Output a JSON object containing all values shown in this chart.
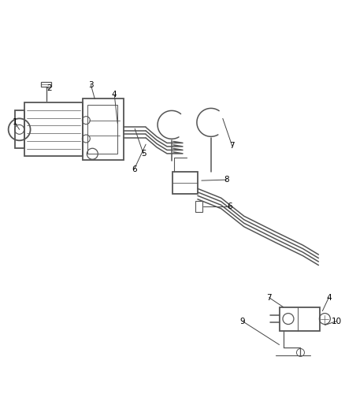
{
  "background_color": "#ffffff",
  "line_color": "#555555",
  "label_color": "#000000",
  "figsize": [
    4.38,
    5.33
  ],
  "dpi": 100
}
